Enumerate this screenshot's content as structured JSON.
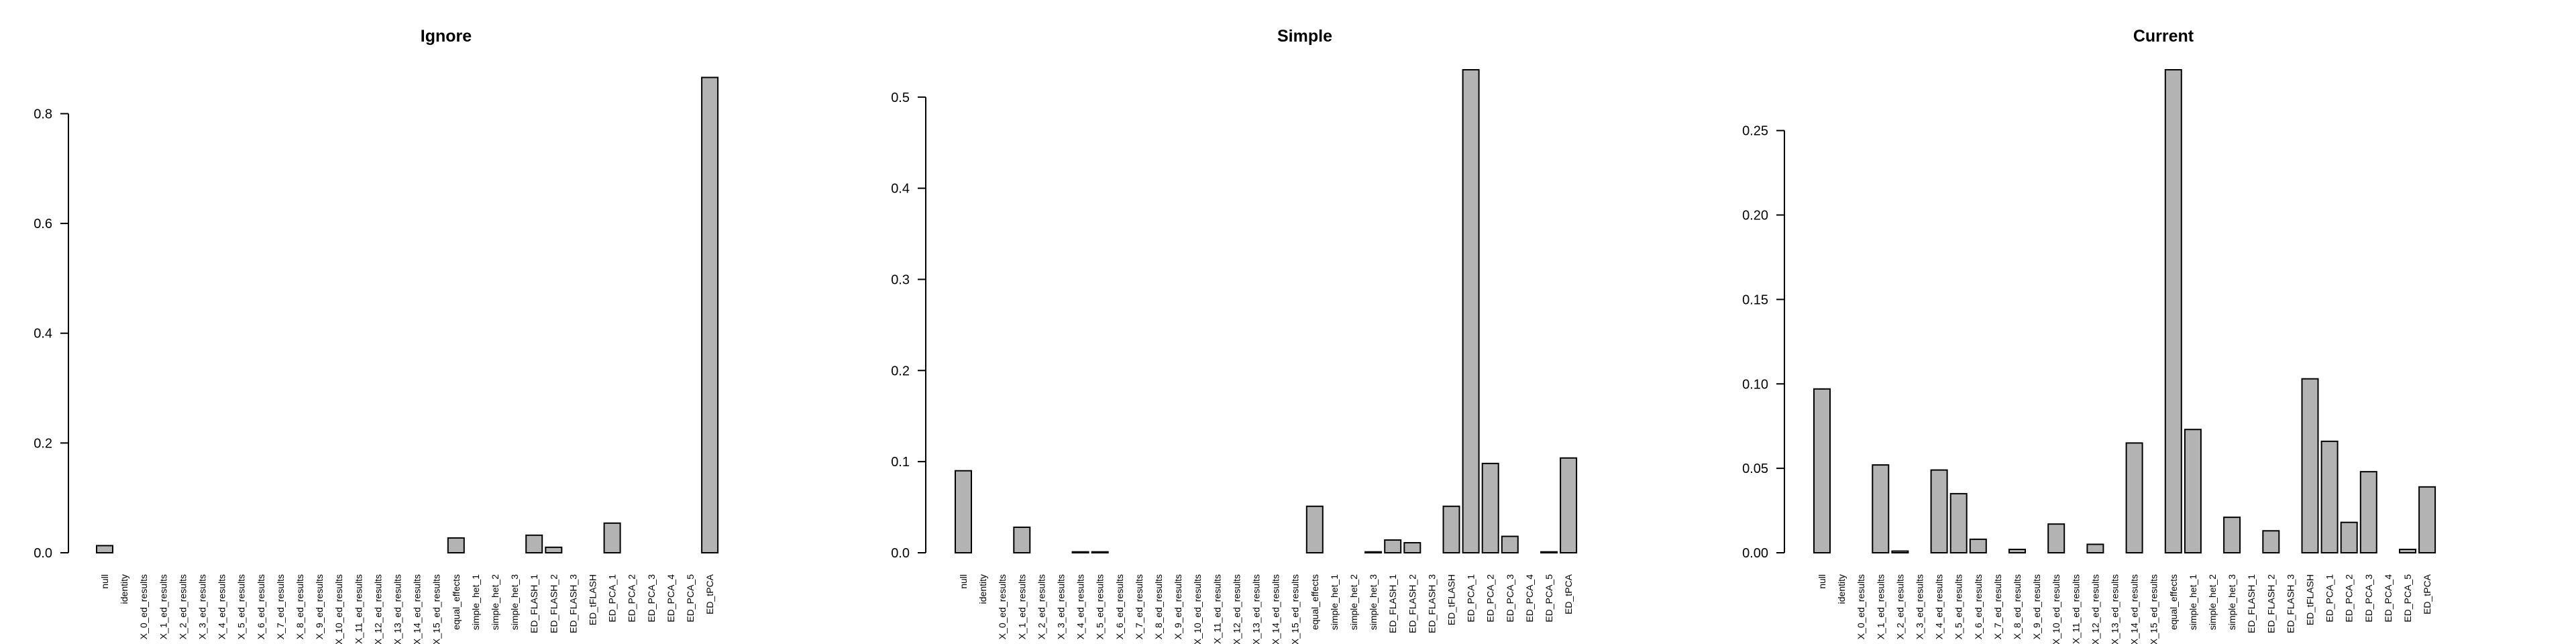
{
  "chart_data": [
    {
      "type": "bar",
      "title": "Ignore",
      "xlabel": "",
      "ylabel": "",
      "ylim": [
        0,
        0.88
      ],
      "yticks": [
        0.0,
        0.2,
        0.4,
        0.6,
        0.8
      ],
      "ytick_labels": [
        "0.0",
        "0.2",
        "0.4",
        "0.6",
        "0.8"
      ],
      "grid": false,
      "categories": [
        "null",
        "identity",
        "X_0_ed_results",
        "X_1_ed_results",
        "X_2_ed_results",
        "X_3_ed_results",
        "X_4_ed_results",
        "X_5_ed_results",
        "X_6_ed_results",
        "X_7_ed_results",
        "X_8_ed_results",
        "X_9_ed_results",
        "X_10_ed_results",
        "X_11_ed_results",
        "X_12_ed_results",
        "X_13_ed_results",
        "X_14_ed_results",
        "X_15_ed_results",
        "equal_effects",
        "simple_het_1",
        "simple_het_2",
        "simple_het_3",
        "ED_FLASH_1",
        "ED_FLASH_2",
        "ED_FLASH_3",
        "ED_tFLASH",
        "ED_PCA_1",
        "ED_PCA_2",
        "ED_PCA_3",
        "ED_PCA_4",
        "ED_PCA_5",
        "ED_tPCA"
      ],
      "values": [
        0.013,
        0,
        0,
        0,
        0,
        0,
        0,
        0,
        0,
        0,
        0,
        0,
        0,
        0,
        0,
        0,
        0,
        0,
        0.027,
        0,
        0,
        0,
        0.032,
        0.01,
        0,
        0,
        0.054,
        0,
        0,
        0,
        0,
        0.866
      ]
    },
    {
      "type": "bar",
      "title": "Simple",
      "xlabel": "",
      "ylabel": "",
      "ylim": [
        0,
        0.53
      ],
      "yticks": [
        0.0,
        0.1,
        0.2,
        0.3,
        0.4,
        0.5
      ],
      "ytick_labels": [
        "0.0",
        "0.1",
        "0.2",
        "0.3",
        "0.4",
        "0.5"
      ],
      "grid": false,
      "categories": [
        "null",
        "identity",
        "X_0_ed_results",
        "X_1_ed_results",
        "X_2_ed_results",
        "X_3_ed_results",
        "X_4_ed_results",
        "X_5_ed_results",
        "X_6_ed_results",
        "X_7_ed_results",
        "X_8_ed_results",
        "X_9_ed_results",
        "X_10_ed_results",
        "X_11_ed_results",
        "X_12_ed_results",
        "X_13_ed_results",
        "X_14_ed_results",
        "X_15_ed_results",
        "equal_effects",
        "simple_het_1",
        "simple_het_2",
        "simple_het_3",
        "ED_FLASH_1",
        "ED_FLASH_2",
        "ED_FLASH_3",
        "ED_tFLASH",
        "ED_PCA_1",
        "ED_PCA_2",
        "ED_PCA_3",
        "ED_PCA_4",
        "ED_PCA_5",
        "ED_tPCA"
      ],
      "values": [
        0.09,
        0,
        0,
        0.028,
        0,
        0,
        0.001,
        0.001,
        0,
        0,
        0,
        0,
        0,
        0,
        0,
        0,
        0,
        0,
        0.051,
        0,
        0,
        0.001,
        0.014,
        0.011,
        0,
        0.051,
        0.53,
        0.098,
        0.018,
        0,
        0.001,
        0.104
      ]
    },
    {
      "type": "bar",
      "title": "Current",
      "xlabel": "",
      "ylabel": "",
      "ylim": [
        0,
        0.286
      ],
      "yticks": [
        0.0,
        0.05,
        0.1,
        0.15,
        0.2,
        0.25
      ],
      "ytick_labels": [
        "0.00",
        "0.05",
        "0.10",
        "0.15",
        "0.20",
        "0.25"
      ],
      "grid": false,
      "categories": [
        "null",
        "identity",
        "X_0_ed_results",
        "X_1_ed_results",
        "X_2_ed_results",
        "X_3_ed_results",
        "X_4_ed_results",
        "X_5_ed_results",
        "X_6_ed_results",
        "X_7_ed_results",
        "X_8_ed_results",
        "X_9_ed_results",
        "X_10_ed_results",
        "X_11_ed_results",
        "X_12_ed_results",
        "X_13_ed_results",
        "X_14_ed_results",
        "X_15_ed_results",
        "equal_effects",
        "simple_het_1",
        "simple_het_2",
        "simple_het_3",
        "ED_FLASH_1",
        "ED_FLASH_2",
        "ED_FLASH_3",
        "ED_tFLASH",
        "ED_PCA_1",
        "ED_PCA_2",
        "ED_PCA_3",
        "ED_PCA_4",
        "ED_PCA_5",
        "ED_tPCA"
      ],
      "values": [
        0.097,
        0,
        0,
        0.052,
        0.001,
        0,
        0.049,
        0.035,
        0.008,
        0,
        0.002,
        0,
        0.017,
        0,
        0.005,
        0,
        0.065,
        0,
        0.286,
        0.073,
        0,
        0.021,
        0,
        0.013,
        0,
        0.103,
        0.066,
        0.018,
        0.048,
        0,
        0.002,
        0.039
      ]
    }
  ]
}
